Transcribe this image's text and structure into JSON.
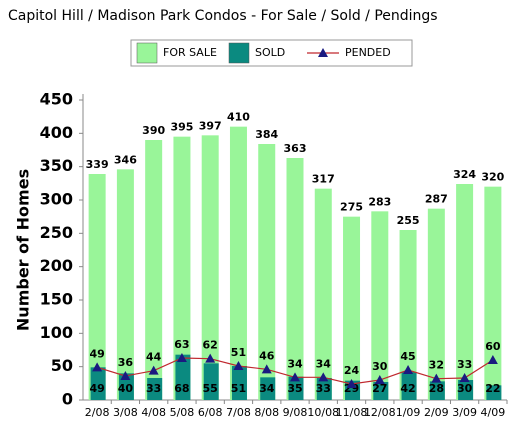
{
  "chart_data": {
    "type": "bar",
    "title": "Capitol Hill / Madison Park Condos - For Sale / Sold / Pendings",
    "y_label": "Number of Homes",
    "categories": [
      "2/08",
      "3/08",
      "4/08",
      "5/08",
      "6/08",
      "7/08",
      "8/08",
      "9/08",
      "10/08",
      "11/08",
      "12/08",
      "1/09",
      "2/09",
      "3/09",
      "4/09"
    ],
    "series": [
      {
        "name": "FOR SALE",
        "type": "bar",
        "color": "#99f599",
        "values": [
          339,
          346,
          390,
          395,
          397,
          410,
          384,
          363,
          317,
          275,
          283,
          255,
          287,
          324,
          320
        ]
      },
      {
        "name": "SOLD",
        "type": "bar",
        "color": "#0b8a80",
        "values": [
          49,
          40,
          33,
          68,
          55,
          51,
          34,
          35,
          33,
          29,
          27,
          42,
          28,
          30,
          22
        ]
      },
      {
        "name": "PENDED",
        "type": "line",
        "color": "#c0282e",
        "marker_color": "#1a1a80",
        "values": [
          49,
          36,
          44,
          63,
          62,
          51,
          46,
          34,
          34,
          24,
          30,
          45,
          32,
          33,
          60
        ]
      }
    ],
    "ylim": [
      0,
      450
    ],
    "yticks": [
      0,
      50,
      100,
      150,
      200,
      250,
      300,
      350,
      400,
      450
    ]
  }
}
